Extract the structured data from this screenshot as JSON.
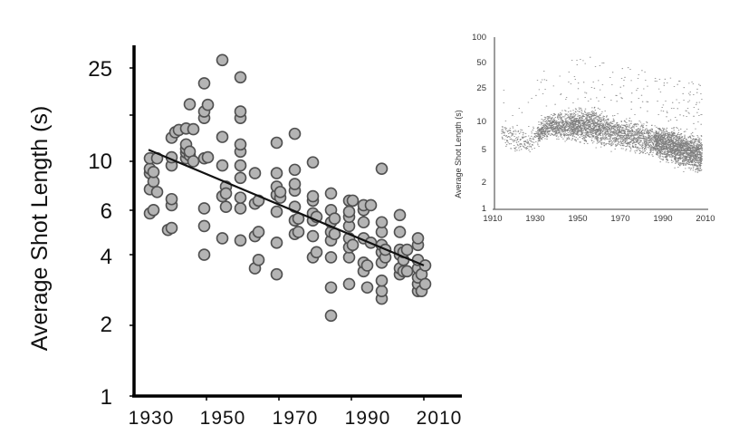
{
  "chart_data": [
    {
      "id": "main",
      "type": "scatter",
      "title": "",
      "xlabel": "",
      "ylabel": "Average Shot Length (s)",
      "yscale": "log",
      "xlim": [
        1930,
        2010
      ],
      "ylim": [
        1,
        30
      ],
      "xticks": [
        1930,
        1950,
        1970,
        1990,
        2010
      ],
      "yticks": [
        1,
        2,
        4,
        6,
        10,
        25
      ],
      "grid": false,
      "legend": null,
      "marker": {
        "fill": "#b4b4b4",
        "stroke": "#505050",
        "radius": 6
      },
      "trendline": {
        "type": "log-linear regression",
        "start": [
          1934,
          11.2
        ],
        "end": [
          2010,
          3.6
        ],
        "color": "#111111"
      },
      "points": [
        [
          1934,
          6.0
        ],
        [
          1934,
          7.6
        ],
        [
          1934,
          8.9
        ],
        [
          1934,
          9.3
        ],
        [
          1934,
          10.3
        ],
        [
          1935,
          6.2
        ],
        [
          1935,
          8.2
        ],
        [
          1935,
          9.0
        ],
        [
          1936,
          7.4
        ],
        [
          1936,
          10.3
        ],
        [
          1939,
          5.1
        ],
        [
          1940,
          5.2
        ],
        [
          1940,
          6.5
        ],
        [
          1940,
          6.9
        ],
        [
          1940,
          9.6
        ],
        [
          1940,
          10.4
        ],
        [
          1940,
          12.6
        ],
        [
          1941,
          13.3
        ],
        [
          1942,
          13.6
        ],
        [
          1944,
          10.3
        ],
        [
          1944,
          10.9
        ],
        [
          1944,
          11.3
        ],
        [
          1944,
          11.8
        ],
        [
          1944,
          13.8
        ],
        [
          1945,
          10.6
        ],
        [
          1945,
          11.0
        ],
        [
          1945,
          17.5
        ],
        [
          1946,
          13.7
        ],
        [
          1946,
          10.0
        ],
        [
          1949,
          4.0
        ],
        [
          1949,
          5.3
        ],
        [
          1949,
          6.3
        ],
        [
          1949,
          10.3
        ],
        [
          1949,
          15.3
        ],
        [
          1949,
          16.3
        ],
        [
          1949,
          21.5
        ],
        [
          1950,
          10.4
        ],
        [
          1950,
          17.4
        ],
        [
          1954,
          4.7
        ],
        [
          1954,
          7.1
        ],
        [
          1954,
          9.6
        ],
        [
          1954,
          12.7
        ],
        [
          1954,
          27.0
        ],
        [
          1955,
          7.8
        ],
        [
          1955,
          7.3
        ],
        [
          1955,
          6.4
        ],
        [
          1959,
          4.6
        ],
        [
          1959,
          6.3
        ],
        [
          1959,
          7.0
        ],
        [
          1959,
          8.5
        ],
        [
          1959,
          9.6
        ],
        [
          1959,
          11.0
        ],
        [
          1959,
          11.8
        ],
        [
          1959,
          15.3
        ],
        [
          1959,
          16.3
        ],
        [
          1959,
          22.8
        ],
        [
          1963,
          3.5
        ],
        [
          1963,
          4.8
        ],
        [
          1963,
          6.6
        ],
        [
          1963,
          8.9
        ],
        [
          1964,
          3.8
        ],
        [
          1964,
          5.0
        ],
        [
          1964,
          6.8
        ],
        [
          1969,
          3.3
        ],
        [
          1969,
          4.5
        ],
        [
          1969,
          6.1
        ],
        [
          1969,
          7.2
        ],
        [
          1969,
          7.8
        ],
        [
          1969,
          8.9
        ],
        [
          1969,
          12.0
        ],
        [
          1970,
          7.0
        ],
        [
          1970,
          7.4
        ],
        [
          1974,
          4.9
        ],
        [
          1974,
          5.6
        ],
        [
          1974,
          6.4
        ],
        [
          1974,
          7.5
        ],
        [
          1974,
          8.0
        ],
        [
          1974,
          9.2
        ],
        [
          1974,
          13.1
        ],
        [
          1975,
          5.0
        ],
        [
          1975,
          5.7
        ],
        [
          1979,
          3.9
        ],
        [
          1979,
          4.8
        ],
        [
          1979,
          5.6
        ],
        [
          1979,
          6.0
        ],
        [
          1979,
          6.8
        ],
        [
          1979,
          7.1
        ],
        [
          1979,
          9.9
        ],
        [
          1980,
          4.1
        ],
        [
          1980,
          5.8
        ],
        [
          1984,
          2.2
        ],
        [
          1984,
          2.9
        ],
        [
          1984,
          3.9
        ],
        [
          1984,
          4.6
        ],
        [
          1984,
          5.0
        ],
        [
          1984,
          5.5
        ],
        [
          1984,
          6.2
        ],
        [
          1984,
          7.3
        ],
        [
          1985,
          4.9
        ],
        [
          1985,
          5.7
        ],
        [
          1989,
          3.0
        ],
        [
          1989,
          3.9
        ],
        [
          1989,
          4.3
        ],
        [
          1989,
          4.7
        ],
        [
          1989,
          5.3
        ],
        [
          1989,
          5.8
        ],
        [
          1989,
          6.1
        ],
        [
          1989,
          6.8
        ],
        [
          1990,
          4.4
        ],
        [
          1990,
          6.8
        ],
        [
          1993,
          3.4
        ],
        [
          1993,
          3.7
        ],
        [
          1993,
          4.7
        ],
        [
          1993,
          5.5
        ],
        [
          1993,
          6.2
        ],
        [
          1993,
          6.5
        ],
        [
          1994,
          3.6
        ],
        [
          1994,
          2.9
        ],
        [
          1995,
          6.5
        ],
        [
          1995,
          4.5
        ],
        [
          1998,
          2.6
        ],
        [
          1998,
          2.8
        ],
        [
          1998,
          3.1
        ],
        [
          1998,
          3.7
        ],
        [
          1998,
          4.1
        ],
        [
          1998,
          4.4
        ],
        [
          1998,
          5.0
        ],
        [
          1998,
          5.5
        ],
        [
          1998,
          9.3
        ],
        [
          1999,
          3.9
        ],
        [
          1999,
          4.2
        ],
        [
          2003,
          3.3
        ],
        [
          2003,
          3.5
        ],
        [
          2003,
          4.0
        ],
        [
          2003,
          4.2
        ],
        [
          2003,
          5.0
        ],
        [
          2003,
          5.9
        ],
        [
          2004,
          3.4
        ],
        [
          2004,
          3.8
        ],
        [
          2004,
          4.1
        ],
        [
          2005,
          3.4
        ],
        [
          2005,
          4.2
        ],
        [
          2008,
          2.8
        ],
        [
          2008,
          3.0
        ],
        [
          2008,
          3.2
        ],
        [
          2008,
          3.5
        ],
        [
          2008,
          3.8
        ],
        [
          2008,
          4.4
        ],
        [
          2008,
          4.7
        ],
        [
          2009,
          3.3
        ],
        [
          2009,
          2.8
        ],
        [
          2010,
          3.0
        ],
        [
          2010,
          3.6
        ]
      ]
    },
    {
      "id": "inset",
      "type": "scatter",
      "title": "",
      "xlabel": "",
      "ylabel": "Average Shot Length (s)",
      "yscale": "log",
      "xlim": [
        1910,
        2010
      ],
      "ylim": [
        1,
        100
      ],
      "xticks": [
        1910,
        1930,
        1950,
        1970,
        1990,
        2010
      ],
      "yticks": [
        1,
        2,
        5,
        10,
        25,
        50,
        100
      ],
      "grid": false,
      "legend": null,
      "marker": {
        "shape": "dash",
        "color": "#555555"
      },
      "description": "Dense scatter of thousands of films; median ~6-8s in 1910s-1920s, rises to ~10s around 1950, declines to ~4s by 2005 with outliers up to ~60s",
      "density_profile": [
        {
          "x": 1915,
          "median": 7.5,
          "low": 4.5,
          "high": 12
        },
        {
          "x": 1925,
          "median": 5.5,
          "low": 4.0,
          "high": 8
        },
        {
          "x": 1935,
          "median": 9.0,
          "low": 6.0,
          "high": 14
        },
        {
          "x": 1945,
          "median": 9.5,
          "low": 5.5,
          "high": 16
        },
        {
          "x": 1955,
          "median": 9.0,
          "low": 5.0,
          "high": 18
        },
        {
          "x": 1965,
          "median": 7.5,
          "low": 4.5,
          "high": 14
        },
        {
          "x": 1975,
          "median": 6.5,
          "low": 4.0,
          "high": 12
        },
        {
          "x": 1985,
          "median": 6.0,
          "low": 3.5,
          "high": 11
        },
        {
          "x": 1995,
          "median": 5.0,
          "low": 2.8,
          "high": 10
        },
        {
          "x": 2005,
          "median": 4.0,
          "low": 2.3,
          "high": 8
        }
      ]
    }
  ],
  "main": {
    "ylabel": "Average Shot Length (s)",
    "ytick_labels": [
      "25",
      "10",
      "6",
      "4",
      "2",
      "1"
    ],
    "xtick_labels": [
      "1930",
      "1950",
      "1970",
      "1990",
      "2010"
    ]
  },
  "inset": {
    "ylabel": "Average Shot Length (s)",
    "ytick_labels": [
      "100",
      "50",
      "25",
      "10",
      "5",
      "2",
      "1"
    ],
    "xtick_labels": [
      "1910",
      "1930",
      "1950",
      "1970",
      "1990",
      "2010"
    ]
  }
}
